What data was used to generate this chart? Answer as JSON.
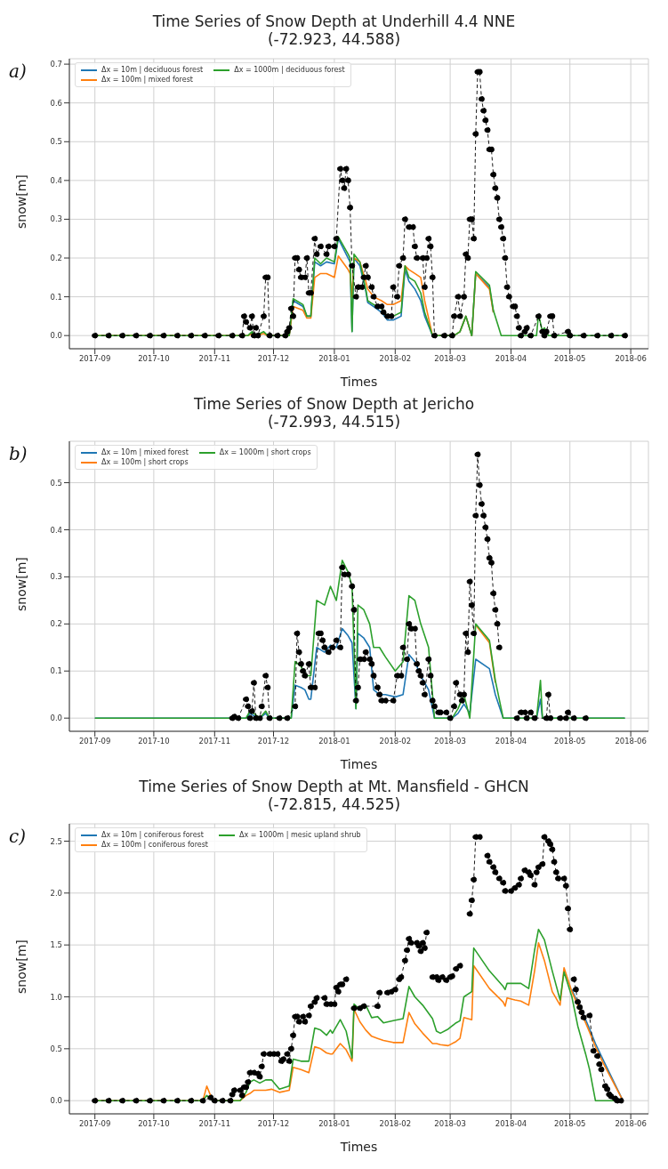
{
  "chart_data": [
    {
      "type": "line",
      "title": "Time Series of Snow Depth at Underhill 4.4 NNE",
      "subtitle": "(-72.923, 44.588)",
      "xlabel": "Times",
      "ylabel": "snow[m]",
      "annotations": [
        "a)"
      ],
      "grid": true,
      "legend": "top left",
      "marker": "none",
      "line_style": "solid",
      "xlim": [
        "2017-08-19",
        "2018-06-10"
      ],
      "xticks": [
        "2017-09",
        "2017-10",
        "2017-11",
        "2017-12",
        "2018-01",
        "2018-02",
        "2018-03",
        "2018-04",
        "2018-05",
        "2018-06"
      ],
      "ylim": [
        -0.034,
        0.714
      ],
      "yticks": [
        {
          "value": 0,
          "label": "0.0"
        },
        0.1,
        0.2,
        0.3,
        0.4,
        0.5,
        0.6,
        0.7
      ],
      "x": [
        "2017-09-01",
        "2017-11-18",
        "2017-11-20",
        "2017-11-22",
        "2017-11-26",
        "2017-11-28",
        "2017-12-09",
        "2017-12-11",
        "2017-12-16",
        "2017-12-18",
        "2017-12-20",
        "2017-12-22",
        "2017-12-25",
        "2017-12-28",
        "2018-01-01",
        "2018-01-03",
        "2018-01-08",
        "2018-01-09",
        "2018-01-10",
        "2018-01-11",
        "2018-01-14",
        "2018-01-17",
        "2018-01-18",
        "2018-01-21",
        "2018-01-25",
        "2018-01-28",
        "2018-01-31",
        "2018-02-04",
        "2018-02-06",
        "2018-02-08",
        "2018-02-11",
        "2018-02-14",
        "2018-02-16",
        "2018-02-20",
        "2018-03-03",
        "2018-03-06",
        "2018-03-09",
        "2018-03-12",
        "2018-03-14",
        "2018-03-21",
        "2018-03-23",
        "2018-03-27",
        "2018-04-14",
        "2018-04-15",
        "2018-04-17",
        "2018-04-18",
        "2018-04-20",
        "2018-05-29"
      ],
      "series": [
        {
          "name": "Δx = 10m | deciduous forest",
          "color": "#1f77b4",
          "values": [
            null,
            null,
            null,
            null,
            null,
            null,
            0,
            0.09,
            0.075,
            0.05,
            0.05,
            0.19,
            0.18,
            0.19,
            0.185,
            0.25,
            0.2,
            0.19,
            0.01,
            0.2,
            0.18,
            0.115,
            0.085,
            0.075,
            0.06,
            0.04,
            0.04,
            0.05,
            0.17,
            0.14,
            0.12,
            0.09,
            0.05,
            0,
            0,
            0.01,
            0.05,
            0,
            0.16,
            0.125,
            0.06,
            null,
            null,
            null,
            null,
            null,
            null,
            null
          ]
        },
        {
          "name": "Δx = 100m | mixed forest",
          "color": "#ff7f0e",
          "values": [
            0,
            0,
            0.005,
            0,
            0.005,
            0,
            0,
            0.075,
            0.065,
            0.045,
            0.045,
            0.15,
            0.16,
            0.16,
            0.15,
            0.205,
            0.17,
            0.16,
            0.1,
            0.2,
            0.19,
            0.14,
            0.12,
            0.1,
            0.09,
            0.08,
            0.08,
            0.09,
            0.18,
            0.17,
            0.16,
            0.15,
            0.09,
            0,
            0,
            0.01,
            0.05,
            0,
            0.16,
            0.12,
            0.06,
            null,
            null,
            null,
            null,
            null,
            null,
            null
          ]
        },
        {
          "name": "Δx = 1000m | deciduous forest",
          "color": "#2ca02c",
          "values": [
            0,
            0,
            0.01,
            0,
            0.01,
            0,
            0,
            0.095,
            0.08,
            0.05,
            0.05,
            0.2,
            0.185,
            0.2,
            0.19,
            0.255,
            0.21,
            0.2,
            0.01,
            0.21,
            0.19,
            0.12,
            0.09,
            0.08,
            0.07,
            0.05,
            0.05,
            0.06,
            0.18,
            0.15,
            0.14,
            0.11,
            0.06,
            0,
            0,
            0.01,
            0.05,
            0,
            0.165,
            0.13,
            0.065,
            0,
            0,
            0.055,
            0.01,
            0.02,
            0,
            0
          ]
        },
        {
          "color": "#000000",
          "marker": "circle",
          "line_style": "dashed",
          "x": [
            "2017-09-01",
            "2017-09-08",
            "2017-09-15",
            "2017-09-22",
            "2017-09-29",
            "2017-10-06",
            "2017-10-13",
            "2017-10-20",
            "2017-10-27",
            "2017-11-03",
            "2017-11-10",
            "2017-11-15",
            "2017-11-16",
            "2017-11-17",
            "2017-11-19",
            "2017-11-20",
            "2017-11-21",
            "2017-11-22",
            "2017-11-23",
            "2017-11-26",
            "2017-11-27",
            "2017-11-28",
            "2017-11-29",
            "2017-12-03",
            "2017-12-07",
            "2017-12-08",
            "2017-12-09",
            "2017-12-10",
            "2017-12-11",
            "2017-12-12",
            "2017-12-13",
            "2017-12-14",
            "2017-12-15",
            "2017-12-17",
            "2017-12-18",
            "2017-12-19",
            "2017-12-20",
            "2017-12-22",
            "2017-12-23",
            "2017-12-25",
            "2017-12-28",
            "2017-12-29",
            "2018-01-01",
            "2018-01-02",
            "2018-01-04",
            "2018-01-05",
            "2018-01-06",
            "2018-01-07",
            "2018-01-08",
            "2018-01-09",
            "2018-01-10",
            "2018-01-12",
            "2018-01-13",
            "2018-01-15",
            "2018-01-16",
            "2018-01-17",
            "2018-01-18",
            "2018-01-20",
            "2018-01-21",
            "2018-01-23",
            "2018-01-25",
            "2018-01-26",
            "2018-01-28",
            "2018-01-30",
            "2018-01-31",
            "2018-02-02",
            "2018-02-03",
            "2018-02-05",
            "2018-02-06",
            "2018-02-08",
            "2018-02-10",
            "2018-02-11",
            "2018-02-12",
            "2018-02-15",
            "2018-02-16",
            "2018-02-17",
            "2018-02-18",
            "2018-02-19",
            "2018-02-20",
            "2018-02-21",
            "2018-02-26",
            "2018-03-02",
            "2018-03-03",
            "2018-03-05",
            "2018-03-06",
            "2018-03-08",
            "2018-03-09",
            "2018-03-10",
            "2018-03-11",
            "2018-03-12",
            "2018-03-13",
            "2018-03-14",
            "2018-03-15",
            "2018-03-16",
            "2018-03-17",
            "2018-03-18",
            "2018-03-19",
            "2018-03-20",
            "2018-03-21",
            "2018-03-22",
            "2018-03-23",
            "2018-03-24",
            "2018-03-25",
            "2018-03-26",
            "2018-03-27",
            "2018-03-28",
            "2018-03-29",
            "2018-03-30",
            "2018-03-31",
            "2018-04-02",
            "2018-04-03",
            "2018-04-04",
            "2018-04-05",
            "2018-04-06",
            "2018-04-08",
            "2018-04-09",
            "2018-04-11",
            "2018-04-15",
            "2018-04-17",
            "2018-04-18",
            "2018-04-19",
            "2018-04-21",
            "2018-04-22",
            "2018-04-23",
            "2018-04-30",
            "2018-05-01",
            "2018-05-08",
            "2018-05-15",
            "2018-05-22",
            "2018-05-29"
          ],
          "values": [
            0,
            0,
            0,
            0,
            0,
            0,
            0,
            0,
            0,
            0,
            0,
            0,
            0.05,
            0.035,
            0.02,
            0.05,
            0,
            0.02,
            0,
            0.05,
            0.15,
            0.15,
            0,
            0,
            0,
            0.01,
            0.02,
            0.07,
            0.05,
            0.2,
            0.2,
            0.17,
            0.15,
            0.15,
            0.2,
            0.11,
            0.11,
            0.25,
            0.21,
            0.23,
            0.21,
            0.23,
            0.23,
            0.25,
            0.43,
            0.4,
            0.38,
            0.43,
            0.4,
            0.33,
            0.18,
            0.1,
            0.125,
            0.125,
            0.15,
            0.18,
            0.15,
            0.125,
            0.1,
            0.075,
            0.075,
            0.06,
            0.05,
            0.05,
            0.125,
            0.1,
            0.18,
            0.2,
            0.3,
            0.28,
            0.28,
            0.23,
            0.2,
            0.2,
            0.125,
            0.2,
            0.25,
            0.23,
            0.15,
            0,
            0,
            0,
            0.05,
            0.1,
            0.05,
            0.1,
            0.21,
            0.2,
            0.3,
            0.3,
            0.25,
            0.52,
            0.68,
            0.68,
            0.61,
            0.58,
            0.555,
            0.53,
            0.48,
            0.48,
            0.415,
            0.38,
            0.355,
            0.3,
            0.28,
            0.25,
            0.2,
            0.125,
            0.1,
            0.075,
            0.075,
            0.05,
            0.02,
            0,
            0.01,
            0.02,
            0,
            0.05,
            0.01,
            0,
            0.01,
            0.05,
            0.05,
            0,
            0.01,
            0,
            0,
            0,
            0,
            0
          ]
        }
      ]
    },
    {
      "type": "line",
      "title": "Time Series of Snow Depth at Jericho",
      "subtitle": "(-72.993, 44.515)",
      "xlabel": "Times",
      "ylabel": "snow[m]",
      "annotations": [
        "b)"
      ],
      "grid": true,
      "legend": "top left",
      "marker": "none",
      "line_style": "solid",
      "xlim": [
        "2017-08-19",
        "2018-06-10"
      ],
      "xticks": [
        "2017-09",
        "2017-10",
        "2017-11",
        "2017-12",
        "2018-01",
        "2018-02",
        "2018-03",
        "2018-04",
        "2018-05",
        "2018-06"
      ],
      "ylim": [
        -0.028,
        0.588
      ],
      "yticks": [
        {
          "value": 0,
          "label": "0.0"
        },
        0.1,
        0.2,
        0.3,
        0.4,
        0.5
      ],
      "x": [
        "2017-09-01",
        "2017-11-17",
        "2017-11-19",
        "2017-11-21",
        "2017-11-24",
        "2017-11-27",
        "2017-11-29",
        "2017-12-10",
        "2017-12-12",
        "2017-12-15",
        "2017-12-17",
        "2017-12-19",
        "2017-12-20",
        "2017-12-23",
        "2017-12-27",
        "2017-12-30",
        "2018-01-02",
        "2018-01-05",
        "2018-01-08",
        "2018-01-10",
        "2018-01-12",
        "2018-01-13",
        "2018-01-16",
        "2018-01-19",
        "2018-01-21",
        "2018-01-24",
        "2018-01-27",
        "2018-02-01",
        "2018-02-05",
        "2018-02-08",
        "2018-02-11",
        "2018-02-14",
        "2018-02-18",
        "2018-02-21",
        "2018-03-02",
        "2018-03-05",
        "2018-03-08",
        "2018-03-11",
        "2018-03-14",
        "2018-03-21",
        "2018-03-24",
        "2018-03-28",
        "2018-04-14",
        "2018-04-16",
        "2018-04-17",
        "2018-05-29"
      ],
      "series": [
        {
          "name": "Δx = 10m | mixed forest",
          "color": "#1f77b4",
          "values": [
            0,
            0,
            0.01,
            0.005,
            0,
            0.01,
            0,
            0,
            0.07,
            0.065,
            0.06,
            0.04,
            0.04,
            0.15,
            0.14,
            0.155,
            0.15,
            0.19,
            0.175,
            0.16,
            0.02,
            0.18,
            0.17,
            0.15,
            0.06,
            0.05,
            0.05,
            0.045,
            0.05,
            0.135,
            0.12,
            0.09,
            0.06,
            0,
            0,
            0.01,
            0.03,
            0.01,
            0.125,
            0.105,
            0.05,
            0,
            0,
            0.04,
            0,
            0
          ]
        },
        {
          "name": "Δx = 100m | short crops",
          "color": "#ff7f0e",
          "values": [
            null,
            null,
            null,
            null,
            null,
            null,
            null,
            null,
            null,
            null,
            null,
            null,
            null,
            null,
            null,
            null,
            null,
            null,
            null,
            null,
            null,
            null,
            null,
            null,
            null,
            null,
            null,
            null,
            null,
            null,
            null,
            null,
            null,
            null,
            null,
            null,
            null,
            null,
            0.198,
            0.16,
            0.075,
            null,
            null,
            null,
            null,
            null
          ]
        },
        {
          "name": "Δx = 1000m | short crops",
          "color": "#2ca02c",
          "values": [
            0,
            0,
            0.015,
            0.01,
            0,
            0.015,
            0,
            0,
            0.12,
            0.11,
            0.09,
            0.09,
            0.09,
            0.25,
            0.24,
            0.28,
            0.25,
            0.335,
            0.31,
            0.28,
            0.02,
            0.24,
            0.23,
            0.2,
            0.15,
            0.15,
            0.13,
            0.1,
            0.12,
            0.26,
            0.25,
            0.2,
            0.15,
            0,
            0,
            0.02,
            0.05,
            0,
            0.2,
            0.165,
            0.08,
            0,
            0,
            0.08,
            0,
            0
          ]
        },
        {
          "color": "#000000",
          "marker": "circle",
          "line_style": "dashed",
          "x": [
            "2017-11-10",
            "2017-11-11",
            "2017-11-13",
            "2017-11-17",
            "2017-11-18",
            "2017-11-19",
            "2017-11-20",
            "2017-11-21",
            "2017-11-22",
            "2017-11-24",
            "2017-11-25",
            "2017-11-27",
            "2017-11-28",
            "2017-11-29",
            "2017-12-04",
            "2017-12-08",
            "2017-12-12",
            "2017-12-13",
            "2017-12-14",
            "2017-12-15",
            "2017-12-16",
            "2017-12-17",
            "2017-12-19",
            "2017-12-20",
            "2017-12-22",
            "2017-12-24",
            "2017-12-25",
            "2017-12-26",
            "2017-12-27",
            "2017-12-29",
            "2017-12-31",
            "2018-01-02",
            "2018-01-04",
            "2018-01-05",
            "2018-01-06",
            "2018-01-08",
            "2018-01-10",
            "2018-01-11",
            "2018-01-12",
            "2018-01-13",
            "2018-01-14",
            "2018-01-16",
            "2018-01-17",
            "2018-01-19",
            "2018-01-20",
            "2018-01-21",
            "2018-01-23",
            "2018-01-24",
            "2018-01-25",
            "2018-01-27",
            "2018-01-31",
            "2018-02-02",
            "2018-02-04",
            "2018-02-05",
            "2018-02-07",
            "2018-02-08",
            "2018-02-09",
            "2018-02-11",
            "2018-02-12",
            "2018-02-13",
            "2018-02-14",
            "2018-02-15",
            "2018-02-16",
            "2018-02-18",
            "2018-02-19",
            "2018-02-20",
            "2018-02-21",
            "2018-02-23",
            "2018-02-24",
            "2018-02-27",
            "2018-03-01",
            "2018-03-03",
            "2018-03-04",
            "2018-03-06",
            "2018-03-07",
            "2018-03-08",
            "2018-03-09",
            "2018-03-10",
            "2018-03-11",
            "2018-03-12",
            "2018-03-13",
            "2018-03-14",
            "2018-03-15",
            "2018-03-16",
            "2018-03-17",
            "2018-03-18",
            "2018-03-19",
            "2018-03-20",
            "2018-03-21",
            "2018-03-22",
            "2018-03-23",
            "2018-03-24",
            "2018-03-25",
            "2018-03-26",
            "2018-03-30",
            "2018-04-04",
            "2018-04-06",
            "2018-04-08",
            "2018-04-09",
            "2018-04-11",
            "2018-04-13",
            "2018-04-19",
            "2018-04-20",
            "2018-04-21",
            "2018-04-24",
            "2018-04-26",
            "2018-04-29",
            "2018-04-30",
            "2018-05-03",
            "2018-05-06",
            "2018-05-09"
          ],
          "values": [
            0,
            0.003,
            0,
            0.04,
            0.025,
            0,
            0.015,
            0.075,
            0,
            0,
            0.025,
            0.09,
            0.065,
            0,
            0,
            0,
            0.025,
            0.18,
            0.14,
            0.115,
            0.1,
            0.09,
            0.115,
            0.065,
            0.065,
            0.18,
            0.18,
            0.165,
            0.15,
            0.14,
            0.15,
            0.165,
            0.15,
            0.32,
            0.305,
            0.305,
            0.28,
            0.23,
            0.037,
            0.065,
            0.125,
            0.125,
            0.14,
            0.125,
            0.115,
            0.09,
            0.065,
            0.05,
            0.037,
            0.037,
            0.037,
            0.09,
            0.09,
            0.15,
            0.125,
            0.2,
            0.19,
            0.19,
            0.115,
            0.1,
            0.09,
            0.075,
            0.05,
            0.125,
            0.09,
            0.037,
            0.025,
            0.012,
            0.012,
            0.012,
            0,
            0.025,
            0.075,
            0.05,
            0.037,
            0.05,
            0.18,
            0.14,
            0.29,
            0.24,
            0.18,
            0.43,
            0.56,
            0.495,
            0.455,
            0.43,
            0.405,
            0.38,
            0.34,
            0.33,
            0.265,
            0.23,
            0.2,
            0.15,
            null,
            0,
            0.012,
            0.012,
            0,
            0.012,
            0,
            0,
            0.05,
            0,
            null,
            0,
            0,
            0.012,
            0,
            null,
            0
          ]
        }
      ]
    },
    {
      "type": "line",
      "title": "Time Series of Snow Depth at Mt. Mansfield - GHCN",
      "subtitle": "(-72.815, 44.525)",
      "xlabel": "Times",
      "ylabel": "snow[m]",
      "annotations": [
        "c)"
      ],
      "grid": true,
      "legend": "top left",
      "marker": "none",
      "line_style": "solid",
      "xlim": [
        "2017-08-19",
        "2018-06-10"
      ],
      "xticks": [
        "2017-09",
        "2017-10",
        "2017-11",
        "2017-12",
        "2018-01",
        "2018-02",
        "2018-03",
        "2018-04",
        "2018-05",
        "2018-06"
      ],
      "ylim": [
        -0.127,
        2.667
      ],
      "yticks": [
        {
          "value": 0,
          "label": "0.0"
        },
        0.5,
        {
          "value": 1,
          "label": "1.0"
        },
        1.5,
        {
          "value": 2,
          "label": "2.0"
        },
        2.5
      ],
      "x": [
        "2017-09-01",
        "2017-10-26",
        "2017-10-28",
        "2017-10-31",
        "2017-11-09",
        "2017-11-14",
        "2017-11-17",
        "2017-11-19",
        "2017-11-21",
        "2017-11-24",
        "2017-11-27",
        "2017-11-30",
        "2017-12-04",
        "2017-12-09",
        "2017-12-11",
        "2017-12-15",
        "2017-12-19",
        "2017-12-22",
        "2017-12-25",
        "2017-12-28",
        "2017-12-30",
        "2017-12-31",
        "2018-01-04",
        "2018-01-07",
        "2018-01-10",
        "2018-01-11",
        "2018-01-14",
        "2018-01-17",
        "2018-01-20",
        "2018-01-23",
        "2018-01-26",
        "2018-01-31",
        "2018-02-05",
        "2018-02-08",
        "2018-02-11",
        "2018-02-15",
        "2018-02-20",
        "2018-02-22",
        "2018-02-24",
        "2018-02-28",
        "2018-03-04",
        "2018-03-06",
        "2018-03-08",
        "2018-03-12",
        "2018-03-13",
        "2018-03-21",
        "2018-03-28",
        "2018-03-29",
        "2018-03-30",
        "2018-04-03",
        "2018-04-06",
        "2018-04-10",
        "2018-04-13",
        "2018-04-15",
        "2018-04-18",
        "2018-04-22",
        "2018-04-26",
        "2018-04-28",
        "2018-05-02",
        "2018-05-05",
        "2018-05-09",
        "2018-05-11",
        "2018-05-14",
        "2018-05-18",
        "2018-05-28"
      ],
      "series": [
        {
          "name": "Δx = 10m | coniferous forest",
          "color": "#1f77b4",
          "values": [
            null,
            null,
            null,
            null,
            null,
            null,
            null,
            null,
            null,
            null,
            null,
            null,
            null,
            null,
            null,
            null,
            null,
            null,
            null,
            null,
            null,
            null,
            null,
            null,
            null,
            null,
            null,
            null,
            null,
            null,
            null,
            null,
            null,
            null,
            null,
            null,
            null,
            null,
            null,
            null,
            null,
            null,
            null,
            null,
            null,
            null,
            null,
            null,
            null,
            null,
            null,
            null,
            null,
            null,
            null,
            null,
            null,
            null,
            1.07,
            0.94,
            0.78,
            0.69,
            0.55,
            0.39,
            0
          ]
        },
        {
          "name": "Δx = 100m | coniferous forest",
          "color": "#ff7f0e",
          "values": [
            0,
            0,
            0.14,
            0,
            0,
            0,
            0.05,
            0.07,
            0.1,
            0.1,
            0.1,
            0.11,
            0.08,
            0.1,
            0.32,
            0.3,
            0.27,
            0.52,
            0.5,
            0.46,
            0.45,
            0.45,
            0.55,
            0.49,
            0.38,
            0.88,
            0.76,
            0.68,
            0.62,
            0.6,
            0.58,
            0.56,
            0.56,
            0.85,
            0.74,
            0.65,
            0.55,
            0.55,
            0.54,
            0.53,
            0.57,
            0.6,
            0.8,
            0.78,
            1.3,
            1.08,
            0.95,
            0.91,
            0.99,
            0.97,
            0.96,
            0.92,
            1.25,
            1.52,
            1.35,
            1.05,
            0.92,
            1.28,
            1.05,
            0.92,
            0.75,
            0.66,
            0.52,
            0.36,
            0
          ]
        },
        {
          "name": "Δx = 1000m | mesic upland shrub",
          "color": "#2ca02c",
          "values": [
            0,
            0,
            0.05,
            0,
            0,
            0,
            0.08,
            0.18,
            0.2,
            0.17,
            0.2,
            0.2,
            0.11,
            0.14,
            0.4,
            0.38,
            0.38,
            0.7,
            0.68,
            0.63,
            0.68,
            0.65,
            0.78,
            0.67,
            0.41,
            0.93,
            0.88,
            0.92,
            0.8,
            0.81,
            0.75,
            0.77,
            0.79,
            1.1,
            1.0,
            0.92,
            0.79,
            0.67,
            0.65,
            0.69,
            0.75,
            0.77,
            1.0,
            1.05,
            1.47,
            1.25,
            1.1,
            1.07,
            1.13,
            1.13,
            1.13,
            1.08,
            1.45,
            1.65,
            1.55,
            1.25,
            0.97,
            1.24,
            1.0,
            0.72,
            0.45,
            0.3,
            0,
            0,
            0
          ]
        },
        {
          "color": "#000000",
          "marker": "circle",
          "line_style": "dashed",
          "x": [
            "2017-09-01",
            "2017-09-08",
            "2017-09-15",
            "2017-09-22",
            "2017-09-29",
            "2017-10-06",
            "2017-10-13",
            "2017-10-20",
            "2017-10-26",
            "2017-10-30",
            "2017-11-01",
            "2017-11-05",
            "2017-11-09",
            "2017-11-10",
            "2017-11-11",
            "2017-11-14",
            "2017-11-15",
            "2017-11-16",
            "2017-11-17",
            "2017-11-18",
            "2017-11-19",
            "2017-11-21",
            "2017-11-23",
            "2017-11-24",
            "2017-11-25",
            "2017-11-26",
            "2017-11-29",
            "2017-12-01",
            "2017-12-03",
            "2017-12-05",
            "2017-12-06",
            "2017-12-08",
            "2017-12-09",
            "2017-12-10",
            "2017-12-11",
            "2017-12-12",
            "2017-12-13",
            "2017-12-14",
            "2017-12-16",
            "2017-12-17",
            "2017-12-19",
            "2017-12-20",
            "2017-12-22",
            "2017-12-23",
            "2017-12-27",
            "2017-12-28",
            "2017-12-30",
            "2018-01-01",
            "2018-01-02",
            "2018-01-03",
            "2018-01-04",
            "2018-01-05",
            "2018-01-07",
            "2018-01-09",
            "2018-01-11",
            "2018-01-14",
            "2018-01-16",
            "2018-01-23",
            "2018-01-24",
            "2018-01-28",
            "2018-01-30",
            "2018-02-01",
            "2018-02-03",
            "2018-02-04",
            "2018-02-06",
            "2018-02-07",
            "2018-02-08",
            "2018-02-09",
            "2018-02-12",
            "2018-02-13",
            "2018-02-14",
            "2018-02-15",
            "2018-02-16",
            "2018-02-17",
            "2018-02-18",
            "2018-02-20",
            "2018-02-22",
            "2018-02-23",
            "2018-02-25",
            "2018-02-27",
            "2018-03-01",
            "2018-03-02",
            "2018-03-04",
            "2018-03-06",
            "2018-03-08",
            "2018-03-11",
            "2018-03-12",
            "2018-03-13",
            "2018-03-14",
            "2018-03-16",
            "2018-03-18",
            "2018-03-20",
            "2018-03-21",
            "2018-03-23",
            "2018-03-24",
            "2018-03-26",
            "2018-03-28",
            "2018-03-29",
            "2018-04-01",
            "2018-04-03",
            "2018-04-05",
            "2018-04-06",
            "2018-04-08",
            "2018-04-10",
            "2018-04-11",
            "2018-04-13",
            "2018-04-14",
            "2018-04-15",
            "2018-04-17",
            "2018-04-18",
            "2018-04-20",
            "2018-04-21",
            "2018-04-22",
            "2018-04-23",
            "2018-04-24",
            "2018-04-25",
            "2018-04-28",
            "2018-04-29",
            "2018-04-30",
            "2018-05-01",
            "2018-05-02",
            "2018-05-03",
            "2018-05-04",
            "2018-05-05",
            "2018-05-06",
            "2018-05-07",
            "2018-05-08",
            "2018-05-11",
            "2018-05-13",
            "2018-05-15",
            "2018-05-16",
            "2018-05-17",
            "2018-05-19",
            "2018-05-20",
            "2018-05-21",
            "2018-05-22",
            "2018-05-24",
            "2018-05-25",
            "2018-05-27"
          ],
          "values": [
            0,
            0,
            0,
            0,
            0,
            0,
            0,
            0,
            0,
            0.03,
            0,
            0,
            0,
            0.06,
            0.1,
            0.1,
            0.05,
            0.13,
            0.13,
            0.18,
            0.27,
            0.27,
            0.26,
            0.23,
            0.33,
            0.45,
            0.45,
            0.45,
            0.45,
            0.38,
            0.4,
            0.45,
            0.38,
            0.5,
            0.63,
            0.81,
            0.81,
            0.76,
            0.81,
            0.76,
            0.82,
            0.91,
            0.95,
            0.99,
            0.99,
            0.93,
            0.93,
            0.93,
            1.09,
            1.05,
            1.12,
            1.12,
            1.17,
            null,
            0.89,
            0.89,
            0.91,
            0.91,
            1.04,
            1.04,
            1.05,
            1.07,
            1.17,
            1.19,
            1.35,
            1.45,
            1.56,
            1.52,
            1.52,
            1.49,
            1.44,
            1.52,
            1.47,
            1.62,
            null,
            1.19,
            1.19,
            1.16,
            1.19,
            1.16,
            1.19,
            1.2,
            1.27,
            1.3,
            null,
            1.8,
            1.93,
            2.13,
            2.54,
            2.54,
            null,
            2.36,
            2.3,
            2.25,
            2.2,
            2.14,
            2.1,
            2.02,
            2.02,
            2.05,
            2.08,
            2.14,
            2.22,
            2.2,
            2.17,
            2.08,
            2.2,
            2.25,
            2.28,
            2.54,
            2.5,
            2.47,
            2.42,
            2.3,
            2.2,
            2.14,
            2.14,
            2.07,
            1.85,
            1.65,
            null,
            1.17,
            1.07,
            0.95,
            0.9,
            0.85,
            0.8,
            0.82,
            0.48,
            0.43,
            0.35,
            0.3,
            0.14,
            0.11,
            0.06,
            0.04,
            0.02,
            0,
            0
          ]
        }
      ]
    }
  ]
}
